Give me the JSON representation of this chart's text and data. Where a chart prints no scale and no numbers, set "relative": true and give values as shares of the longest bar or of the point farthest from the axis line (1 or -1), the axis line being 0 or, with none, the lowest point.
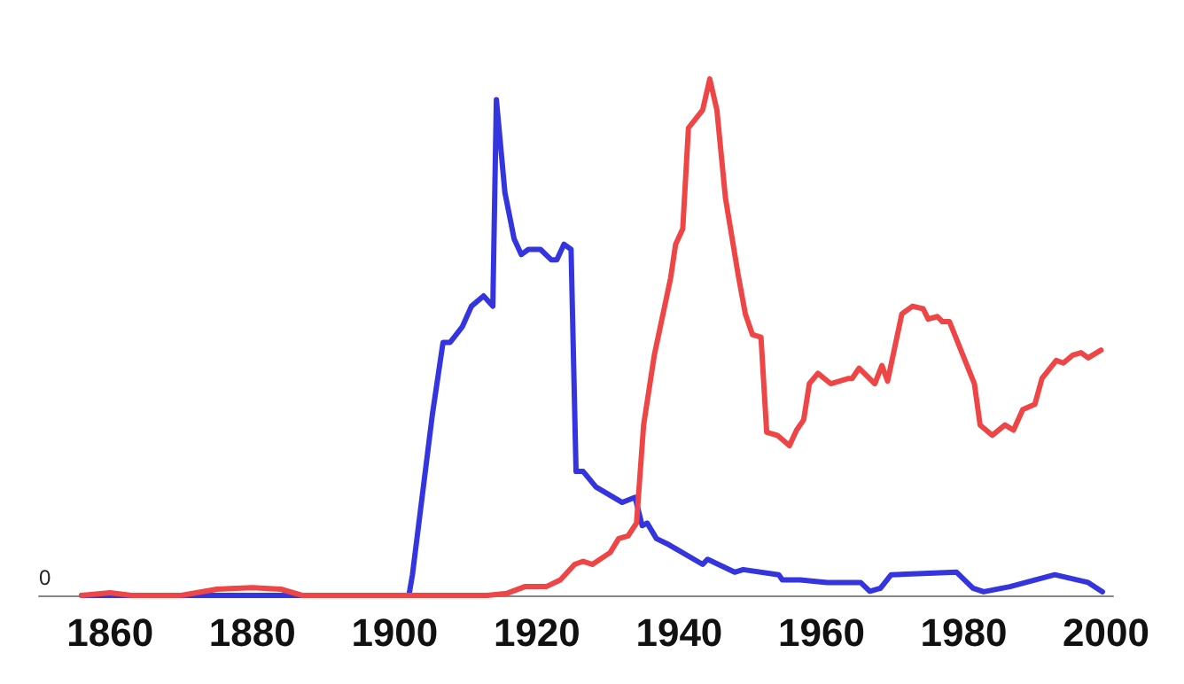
{
  "chart_data": {
    "type": "line",
    "relative": true,
    "xlim": [
      1850,
      2001
    ],
    "xticks": [
      1860,
      1880,
      1900,
      1920,
      1940,
      1960,
      1980,
      2000
    ],
    "marker": "none",
    "line_style": "solid",
    "grid": false,
    "annotations": [
      "0"
    ],
    "series": [
      {
        "color": "#3535e0",
        "x": [
          1856,
          1870,
          1880,
          1890,
          1900,
          1902,
          1902.5,
          1905.3,
          1906.8,
          1907.8,
          1909.5,
          1910.8,
          1912.5,
          1913.8,
          1914.3,
          1915.5,
          1916.8,
          1917.8,
          1918.8,
          1920.5,
          1922,
          1922.8,
          1923.8,
          1924.8,
          1925.5,
          1926.5,
          1928.3,
          1932,
          1933.8,
          1934.8,
          1935.5,
          1936.8,
          1938.3,
          1943.3,
          1944,
          1947.8,
          1949,
          1954,
          1954.5,
          1957,
          1960.8,
          1965.5,
          1966.8,
          1968.3,
          1969.8,
          1979,
          1981.3,
          1982.8,
          1986.5,
          1992.8,
          1997.5,
          1999.5
        ],
        "values": [
          0,
          0,
          0,
          0,
          0,
          0,
          0.04,
          0.35,
          0.49,
          0.49,
          0.52,
          0.56,
          0.58,
          0.56,
          0.96,
          0.78,
          0.69,
          0.66,
          0.67,
          0.67,
          0.65,
          0.65,
          0.68,
          0.67,
          0.24,
          0.24,
          0.21,
          0.18,
          0.19,
          0.135,
          0.14,
          0.11,
          0.1,
          0.06,
          0.07,
          0.045,
          0.05,
          0.04,
          0.03,
          0.03,
          0.025,
          0.025,
          0.008,
          0.014,
          0.04,
          0.045,
          0.014,
          0.007,
          0.017,
          0.04,
          0.025,
          0.007
        ]
      },
      {
        "color": "#ee4646",
        "x": [
          1856,
          1860,
          1863,
          1870,
          1875,
          1880,
          1884,
          1887,
          1913,
          1915.8,
          1918.3,
          1921.3,
          1923.3,
          1925.3,
          1926.5,
          1927.8,
          1930.3,
          1931.5,
          1932.8,
          1934,
          1935,
          1936.5,
          1938.8,
          1939.5,
          1940.5,
          1941.3,
          1943.3,
          1944.3,
          1945.3,
          1946.5,
          1948.3,
          1949.3,
          1950.3,
          1951.5,
          1952.3,
          1953.8,
          1955.5,
          1956.5,
          1957.5,
          1958.3,
          1959.5,
          1961.3,
          1963.8,
          1964.3,
          1965.3,
          1967.5,
          1968.5,
          1969.3,
          1971.3,
          1972.8,
          1974.3,
          1975,
          1976.3,
          1977,
          1978,
          1981.5,
          1982.3,
          1984,
          1985.8,
          1987,
          1988.3,
          1990,
          1991,
          1993,
          1994,
          1995.3,
          1996.5,
          1997.5,
          1999.3
        ],
        "values": [
          0,
          0.005,
          0,
          0,
          0.012,
          0.015,
          0.012,
          0,
          0,
          0.004,
          0.017,
          0.017,
          0.03,
          0.06,
          0.066,
          0.06,
          0.083,
          0.11,
          0.115,
          0.14,
          0.33,
          0.465,
          0.615,
          0.68,
          0.71,
          0.905,
          0.94,
          1,
          0.94,
          0.77,
          0.62,
          0.545,
          0.505,
          0.5,
          0.316,
          0.31,
          0.29,
          0.32,
          0.34,
          0.41,
          0.43,
          0.41,
          0.42,
          0.42,
          0.44,
          0.41,
          0.445,
          0.415,
          0.545,
          0.56,
          0.555,
          0.535,
          0.54,
          0.53,
          0.53,
          0.41,
          0.33,
          0.31,
          0.33,
          0.32,
          0.36,
          0.37,
          0.42,
          0.455,
          0.45,
          0.465,
          0.47,
          0.46,
          0.475
        ]
      }
    ]
  }
}
